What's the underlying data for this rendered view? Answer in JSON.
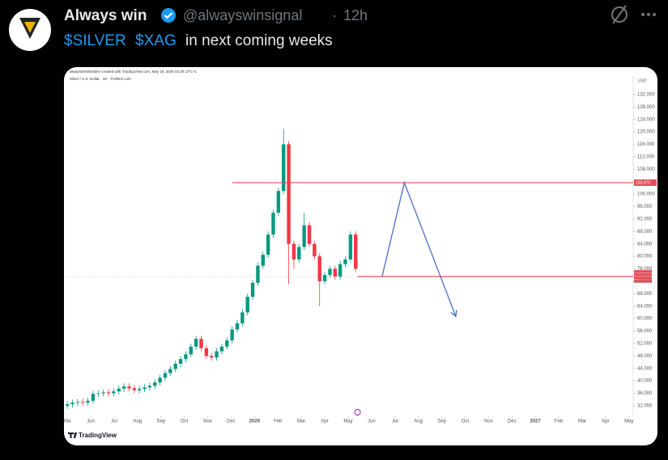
{
  "tweet": {
    "author": "Always win",
    "handle": "@alwayswinsignal",
    "separator": "·",
    "time": "12h",
    "text": [
      "$SILVER",
      "$XAG",
      "in next coming weeks"
    ]
  },
  "chart_data": {
    "type": "candlestick",
    "caption": "alwayswin00trades created with TradingView.com, May 18, 2026 02:30 UTC+1",
    "symbol": "Silver / U.S. Dollar · 1D · FOREX.com",
    "unit": "USD",
    "price_label": "103.670",
    "branding": "TradingView",
    "up_color": "#089981",
    "down_color": "#f23645",
    "line_color": "#e0505a",
    "arrow_color": "#4a6fc4",
    "x": [
      0,
      0.22,
      0.44,
      0.66,
      0.88,
      1.1,
      1.32,
      1.54,
      1.76,
      1.98,
      2.2,
      2.42,
      2.64,
      2.86,
      3.08,
      3.3,
      3.52,
      3.74,
      3.96,
      4.18,
      4.4,
      4.62,
      4.84,
      5.06,
      5.28,
      5.5,
      5.72,
      5.94,
      6.16,
      6.38,
      6.6,
      6.82,
      7.04,
      7.26,
      7.48,
      7.7,
      7.92,
      8.14,
      8.36,
      8.58,
      8.8,
      9.02,
      9.24,
      9.46,
      9.68,
      9.9,
      10.12,
      10.34,
      10.56,
      10.78,
      11.0,
      11.22,
      11.44,
      11.66,
      11.88,
      12.1,
      12.32
    ],
    "open": [
      32.0,
      32.5,
      33.0,
      33.2,
      33.0,
      33.6,
      35.8,
      36.0,
      36.3,
      36.0,
      36.6,
      37.5,
      38.2,
      37.6,
      37.0,
      37.4,
      37.9,
      38.4,
      39.5,
      41.0,
      42.5,
      43.8,
      45.5,
      47.0,
      48.5,
      51.0,
      53.5,
      50.5,
      48.0,
      47.5,
      49.5,
      51.0,
      53.0,
      56.5,
      58.5,
      62.0,
      67.0,
      71.5,
      77.0,
      80.5,
      87.0,
      94.0,
      101.0,
      116.0,
      84.0,
      79.0,
      83.0,
      90.0,
      84.0,
      80.0,
      72.0,
      74.0,
      76.0,
      73.5,
      77.5,
      79.0,
      87.0
    ],
    "high": [
      33.5,
      34.0,
      34.2,
      34.2,
      34.6,
      36.8,
      37.0,
      37.3,
      37.3,
      37.6,
      38.5,
      39.2,
      39.2,
      38.6,
      38.4,
      38.9,
      39.4,
      40.5,
      42.0,
      43.5,
      44.8,
      46.5,
      48.0,
      49.5,
      52.0,
      54.5,
      54.5,
      51.5,
      49.0,
      50.5,
      52.0,
      54.0,
      57.5,
      59.5,
      63.0,
      68.0,
      72.5,
      78.0,
      81.5,
      88.0,
      95.0,
      102.0,
      121.0,
      117.0,
      85.0,
      84.0,
      94.0,
      91.0,
      85.0,
      81.0,
      75.0,
      77.0,
      77.0,
      78.5,
      80.0,
      88.0,
      88.0
    ],
    "low": [
      31.0,
      31.5,
      32.0,
      32.0,
      32.0,
      32.6,
      34.8,
      35.0,
      35.0,
      35.0,
      35.6,
      36.5,
      36.6,
      36.0,
      36.0,
      36.4,
      36.9,
      37.4,
      38.5,
      40.0,
      41.5,
      42.8,
      44.5,
      46.0,
      47.5,
      50.0,
      49.5,
      47.0,
      46.5,
      46.5,
      48.5,
      50.0,
      52.0,
      55.5,
      57.5,
      61.0,
      66.0,
      70.5,
      76.0,
      79.5,
      86.0,
      93.0,
      100.0,
      71.0,
      76.0,
      78.0,
      82.0,
      83.0,
      79.0,
      64.0,
      71.0,
      73.0,
      72.5,
      72.5,
      76.5,
      78.0,
      75.0
    ],
    "close": [
      32.5,
      33.0,
      33.2,
      33.0,
      33.6,
      35.8,
      36.0,
      36.3,
      36.0,
      36.6,
      37.5,
      38.2,
      37.6,
      37.0,
      37.4,
      37.9,
      38.4,
      39.5,
      41.0,
      42.5,
      43.8,
      45.5,
      47.0,
      48.5,
      51.0,
      53.5,
      50.5,
      48.0,
      47.5,
      49.5,
      51.0,
      53.0,
      56.5,
      58.5,
      62.0,
      67.0,
      71.5,
      77.0,
      80.5,
      87.0,
      94.0,
      101.0,
      116.0,
      84.0,
      79.0,
      83.0,
      90.0,
      84.0,
      80.0,
      72.0,
      74.0,
      76.0,
      73.5,
      77.5,
      79.0,
      87.0,
      76.0
    ],
    "xlim": [
      -0.11,
      24.18
    ],
    "ylim": [
      28.6,
      138.2
    ],
    "xticks": [
      {
        "value": 0,
        "label": "Ma"
      },
      {
        "value": 1,
        "label": "Jun"
      },
      {
        "value": 2,
        "label": "Jul"
      },
      {
        "value": 3,
        "label": "Aug"
      },
      {
        "value": 4,
        "label": "Sep"
      },
      {
        "value": 5,
        "label": "Oct"
      },
      {
        "value": 6,
        "label": "Nov"
      },
      {
        "value": 7,
        "label": "Dec"
      },
      {
        "value": 8,
        "label": "2026"
      },
      {
        "value": 9,
        "label": "Feb"
      },
      {
        "value": 10,
        "label": "Mar"
      },
      {
        "value": 11,
        "label": "Apr"
      },
      {
        "value": 12,
        "label": "May"
      },
      {
        "value": 13,
        "label": "Jun"
      },
      {
        "value": 14,
        "label": "Jul"
      },
      {
        "value": 15,
        "label": "Aug"
      },
      {
        "value": 16,
        "label": "Sep"
      },
      {
        "value": 17,
        "label": "Oct"
      },
      {
        "value": 18,
        "label": "Nov"
      },
      {
        "value": 19,
        "label": "Dec"
      },
      {
        "value": 20,
        "label": "2027"
      },
      {
        "value": 21,
        "label": "Feb"
      },
      {
        "value": 22,
        "label": "Mar"
      },
      {
        "value": 23,
        "label": "Apr"
      },
      {
        "value": 24,
        "label": "May"
      }
    ],
    "yticks": [
      {
        "value": 32,
        "label": "32.000"
      },
      {
        "value": 36,
        "label": "36.000"
      },
      {
        "value": 40,
        "label": "40.000"
      },
      {
        "value": 44,
        "label": "44.000"
      },
      {
        "value": 48,
        "label": "48.000"
      },
      {
        "value": 52,
        "label": "52.000"
      },
      {
        "value": 56,
        "label": "56.000"
      },
      {
        "value": 60,
        "label": "60.000"
      },
      {
        "value": 64,
        "label": "64.000"
      },
      {
        "value": 68,
        "label": "68.000"
      },
      {
        "value": 72,
        "label": "72.000"
      },
      {
        "value": 76,
        "label": "76.000"
      },
      {
        "value": 80,
        "label": "80.000"
      },
      {
        "value": 84,
        "label": "84.000"
      },
      {
        "value": 88,
        "label": "88.000"
      },
      {
        "value": 92,
        "label": "92.000"
      },
      {
        "value": 96,
        "label": "96.000"
      },
      {
        "value": 100,
        "label": "100.000"
      },
      {
        "value": 104,
        "label": "104.000"
      },
      {
        "value": 108,
        "label": "108.000"
      },
      {
        "value": 112,
        "label": "112.000"
      },
      {
        "value": 116,
        "label": "116.000"
      },
      {
        "value": 120,
        "label": "120.000"
      },
      {
        "value": 124,
        "label": "124.000"
      },
      {
        "value": 128,
        "label": "128.000"
      },
      {
        "value": 132,
        "label": "132.000"
      }
    ],
    "hlines": [
      {
        "value": 103.67,
        "from": 7.05
      },
      {
        "value": 73.5,
        "from": 12.4
      }
    ],
    "arrow": {
      "x": [
        13.45,
        14.4,
        16.6
      ],
      "y": [
        73.5,
        103.67,
        60.7
      ]
    }
  }
}
